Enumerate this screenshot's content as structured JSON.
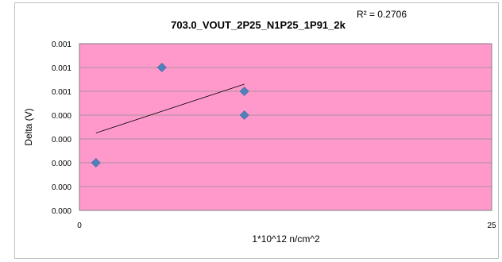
{
  "chart_data": {
    "type": "scatter",
    "title": "703.0_VOUT_2P25_N1P25_1P91_2k",
    "xlabel": "1*10^12 n/cm^2",
    "ylabel": "Delta (V)",
    "xlim": [
      0,
      25
    ],
    "x_ticks": [
      "0",
      "25"
    ],
    "y_tick_labels": [
      "0.000",
      "0.000",
      "0.000",
      "0.000",
      "0.000",
      "0.001",
      "0.001",
      "0.001"
    ],
    "ylim": [
      0,
      0.0014
    ],
    "grid": true,
    "plot_background": "#ff99cc",
    "marker_color": "#4f81bd",
    "points": [
      {
        "x": 1,
        "y": 0.0004
      },
      {
        "x": 5,
        "y": 0.0012
      },
      {
        "x": 10,
        "y": 0.001
      },
      {
        "x": 10,
        "y": 0.0008
      }
    ],
    "trendline": {
      "x": [
        1,
        10
      ],
      "y": [
        0.00065,
        0.00106
      ],
      "r_squared_label": "R² = 0.2706"
    }
  }
}
